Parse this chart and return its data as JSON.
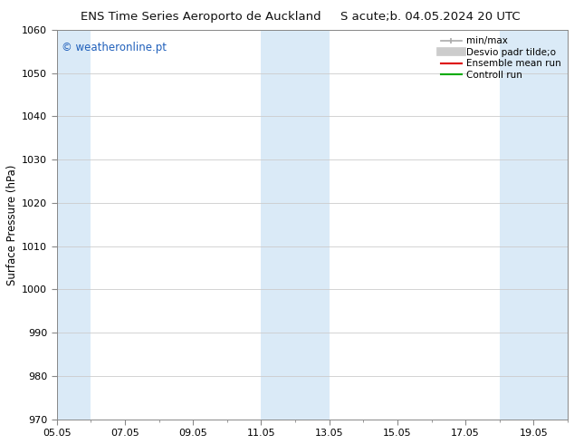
{
  "title_left": "ENS Time Series Aeroporto de Auckland",
  "title_right": "S acute;b. 04.05.2024 20 UTC",
  "ylabel": "Surface Pressure (hPa)",
  "ylim": [
    970,
    1060
  ],
  "yticks": [
    970,
    980,
    990,
    1000,
    1010,
    1020,
    1030,
    1040,
    1050,
    1060
  ],
  "xlim": [
    0,
    15
  ],
  "xtick_labels": [
    "05.05",
    "07.05",
    "09.05",
    "11.05",
    "13.05",
    "15.05",
    "17.05",
    "19.05"
  ],
  "xtick_positions": [
    0,
    2,
    4,
    6,
    8,
    10,
    12,
    14
  ],
  "shaded_bands": [
    {
      "x_start": 0.0,
      "x_end": 1.0,
      "color": "#daeaf7"
    },
    {
      "x_start": 6.0,
      "x_end": 8.0,
      "color": "#daeaf7"
    },
    {
      "x_start": 13.0,
      "x_end": 15.0,
      "color": "#daeaf7"
    }
  ],
  "watermark": "© weatheronline.pt",
  "watermark_color": "#2060bb",
  "bg_color": "#ffffff",
  "legend_labels": [
    "min/max",
    "Desvio padr tilde;o",
    "Ensemble mean run",
    "Controll run"
  ],
  "legend_colors": [
    "#aaaaaa",
    "#cccccc",
    "#dd0000",
    "#00aa00"
  ],
  "grid_color": "#cccccc",
  "spine_color": "#888888",
  "title_fontsize": 9.5,
  "ylabel_fontsize": 8.5,
  "tick_fontsize": 8,
  "legend_fontsize": 7.5,
  "watermark_fontsize": 8.5
}
